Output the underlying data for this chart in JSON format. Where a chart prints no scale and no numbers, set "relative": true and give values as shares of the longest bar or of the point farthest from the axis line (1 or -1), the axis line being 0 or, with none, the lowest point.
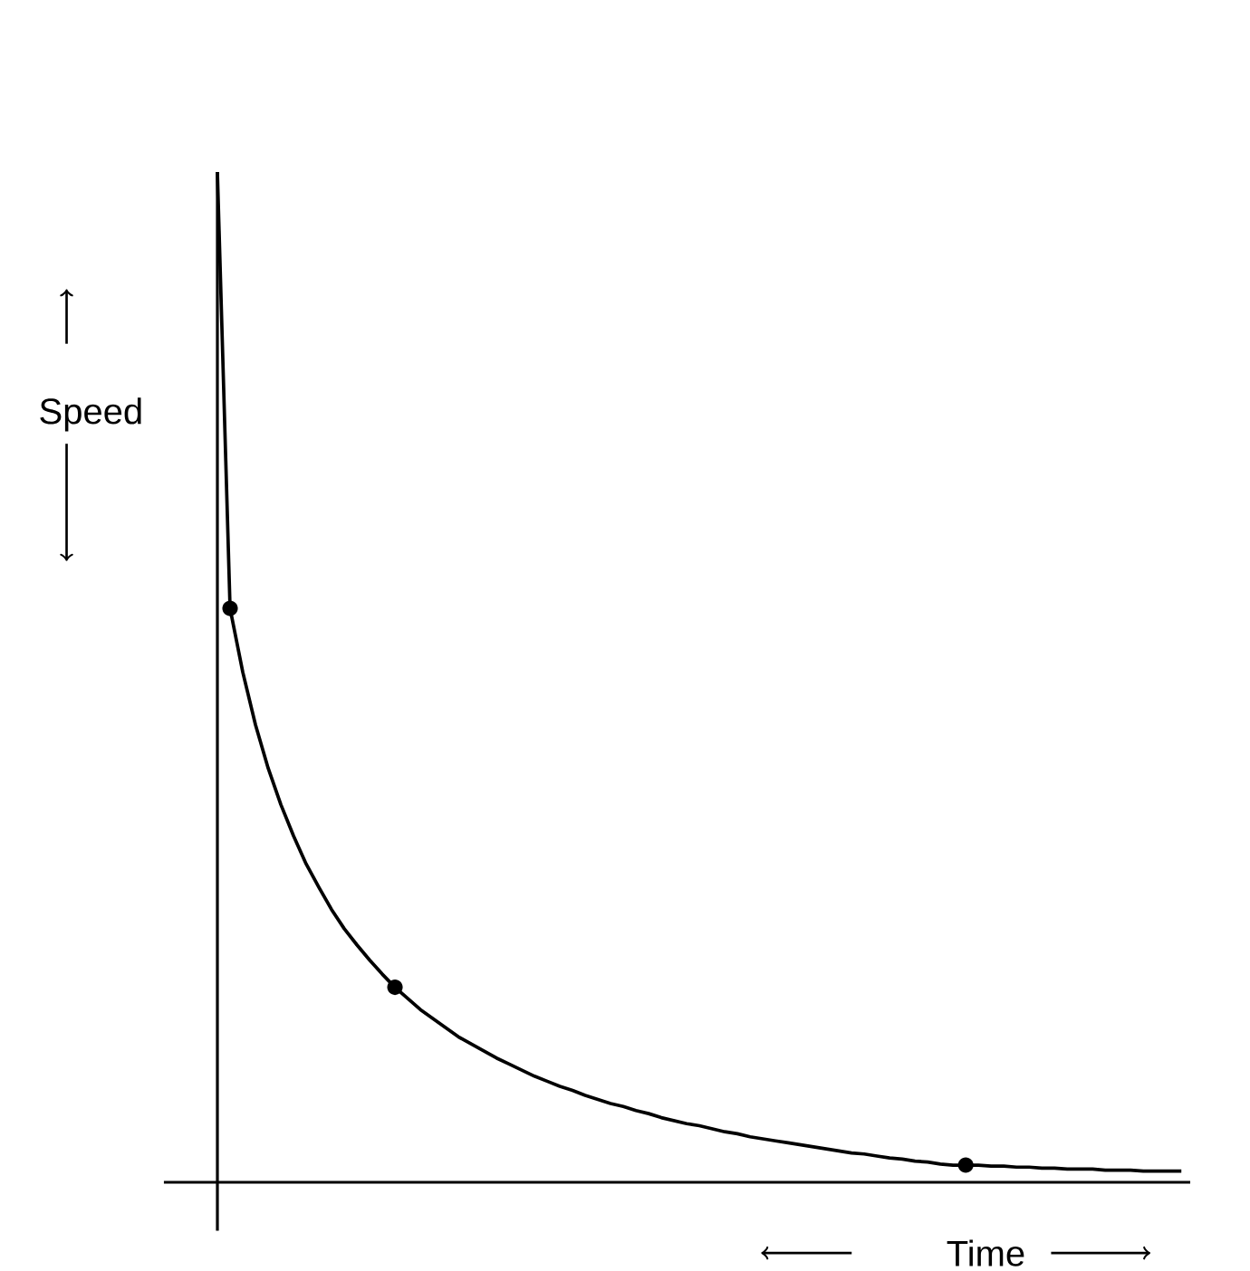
{
  "chart_data": {
    "type": "line",
    "relative": true,
    "xlabel": "Time",
    "ylabel": "Speed",
    "categories": [
      null,
      null,
      null,
      null,
      null,
      null,
      null,
      null,
      null,
      null,
      null,
      null,
      null,
      null,
      null,
      null,
      null,
      null,
      null,
      null,
      null,
      null,
      null,
      null,
      null,
      null,
      null,
      null,
      null,
      null,
      null,
      null,
      null,
      null,
      null,
      null,
      null,
      null,
      null,
      null,
      null,
      null,
      null,
      null,
      null,
      null,
      null,
      null,
      null,
      null,
      null,
      null,
      null,
      null,
      null,
      null,
      null,
      null,
      null,
      null,
      null,
      null,
      null,
      null,
      null,
      null,
      null,
      null,
      null,
      null,
      null,
      null,
      null,
      null,
      null,
      null,
      null
    ],
    "series": [
      {
        "color": "#000000",
        "values": [
          1.0,
          0.568,
          0.505,
          0.453,
          0.41,
          0.374,
          0.343,
          0.315,
          0.292,
          0.27,
          0.251,
          0.235,
          0.22,
          0.206,
          0.193,
          0.182,
          0.171,
          0.162,
          0.153,
          0.144,
          0.137,
          0.13,
          0.123,
          0.117,
          0.111,
          0.105,
          0.1,
          0.095,
          0.091,
          0.086,
          0.082,
          0.078,
          0.075,
          0.071,
          0.068,
          0.064,
          0.061,
          0.058,
          0.056,
          0.053,
          0.05,
          0.048,
          0.045,
          0.043,
          0.041,
          0.039,
          0.037,
          0.035,
          0.033,
          0.031,
          0.029,
          0.028,
          0.026,
          0.024,
          0.023,
          0.021,
          0.02,
          0.018,
          0.017,
          0.017,
          0.017,
          0.016,
          0.016,
          0.015,
          0.015,
          0.014,
          0.014,
          0.013,
          0.013,
          0.013,
          0.012,
          0.012,
          0.012,
          0.011,
          0.011,
          0.011,
          0.011
        ]
      }
    ]
  }
}
